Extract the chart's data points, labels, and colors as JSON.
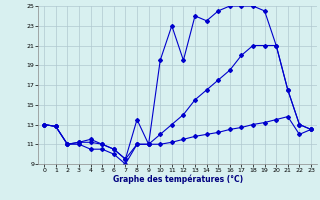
{
  "xlabel": "Graphe des températures (°C)",
  "background_color": "#d8f0f0",
  "grid_color": "#b0c8d0",
  "line_color": "#0000cc",
  "xlim": [
    -0.5,
    23.5
  ],
  "ylim": [
    9,
    25
  ],
  "yticks": [
    9,
    11,
    13,
    15,
    17,
    19,
    21,
    23,
    25
  ],
  "xticks": [
    0,
    1,
    2,
    3,
    4,
    5,
    6,
    7,
    8,
    9,
    10,
    11,
    12,
    13,
    14,
    15,
    16,
    17,
    18,
    19,
    20,
    21,
    22,
    23
  ],
  "line1_x": [
    0,
    1,
    2,
    3,
    4,
    5,
    6,
    7,
    8,
    9,
    10,
    11,
    12,
    13,
    14,
    15,
    16,
    17,
    18,
    19,
    20,
    21,
    22,
    23
  ],
  "line1_y": [
    13.0,
    12.8,
    11.0,
    11.2,
    11.2,
    11.0,
    10.5,
    9.5,
    13.5,
    11.0,
    19.5,
    23.0,
    19.5,
    24.0,
    23.5,
    24.5,
    25.0,
    25.0,
    25.0,
    24.5,
    21.0,
    16.5,
    13.0,
    12.5
  ],
  "line2_x": [
    0,
    1,
    2,
    3,
    4,
    5,
    6,
    7,
    8,
    9,
    10,
    11,
    12,
    13,
    14,
    15,
    16,
    17,
    18,
    19,
    20,
    21,
    22,
    23
  ],
  "line2_y": [
    13.0,
    12.8,
    11.0,
    11.2,
    11.5,
    11.0,
    10.5,
    9.5,
    11.0,
    11.0,
    12.0,
    13.0,
    14.0,
    15.5,
    16.5,
    17.5,
    18.5,
    20.0,
    21.0,
    21.0,
    21.0,
    16.5,
    13.0,
    12.5
  ],
  "line3_x": [
    0,
    1,
    2,
    3,
    4,
    5,
    6,
    7,
    8,
    9,
    10,
    11,
    12,
    13,
    14,
    15,
    16,
    17,
    18,
    19,
    20,
    21,
    22,
    23
  ],
  "line3_y": [
    13.0,
    12.8,
    11.0,
    11.0,
    10.5,
    10.5,
    10.0,
    9.0,
    11.0,
    11.0,
    11.0,
    11.2,
    11.5,
    11.8,
    12.0,
    12.2,
    12.5,
    12.7,
    13.0,
    13.2,
    13.5,
    13.8,
    12.0,
    12.5
  ]
}
